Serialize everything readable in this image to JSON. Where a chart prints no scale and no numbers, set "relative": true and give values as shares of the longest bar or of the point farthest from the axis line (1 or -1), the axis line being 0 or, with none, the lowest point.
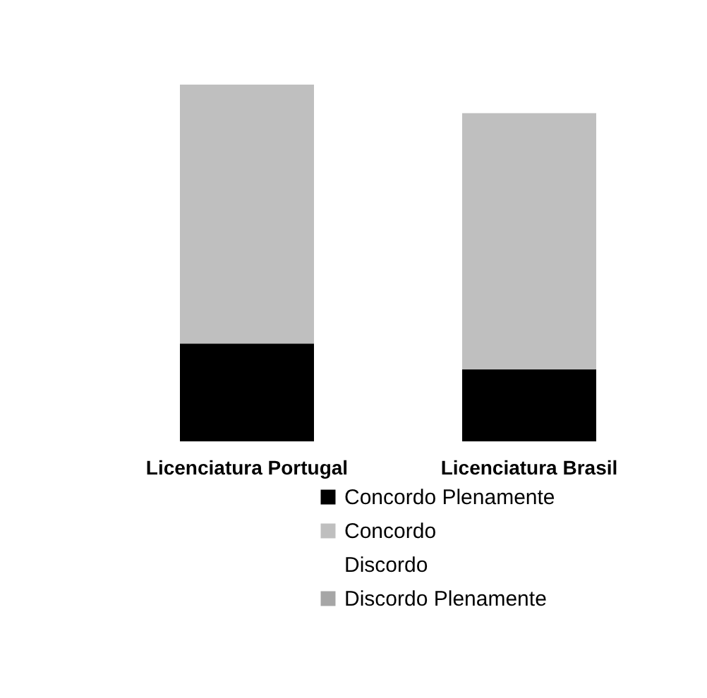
{
  "chart_data": {
    "type": "bar",
    "stacked": true,
    "relative": true,
    "legend": "bottom",
    "categories": [
      "Licenciatura Portugal",
      "Licenciatura Brasil"
    ],
    "series": [
      {
        "name": "Concordo Plenamente",
        "color": "#000000",
        "values": [
          0.274,
          0.202
        ]
      },
      {
        "name": "Concordo",
        "color": "#bfbfbf",
        "values": [
          0.726,
          0.718
        ]
      },
      {
        "name": "Discordo",
        "values": [
          0,
          0
        ]
      },
      {
        "name": "Discordo Plenamente",
        "color": "#a6a6a6",
        "values": [
          0,
          0
        ]
      }
    ]
  }
}
